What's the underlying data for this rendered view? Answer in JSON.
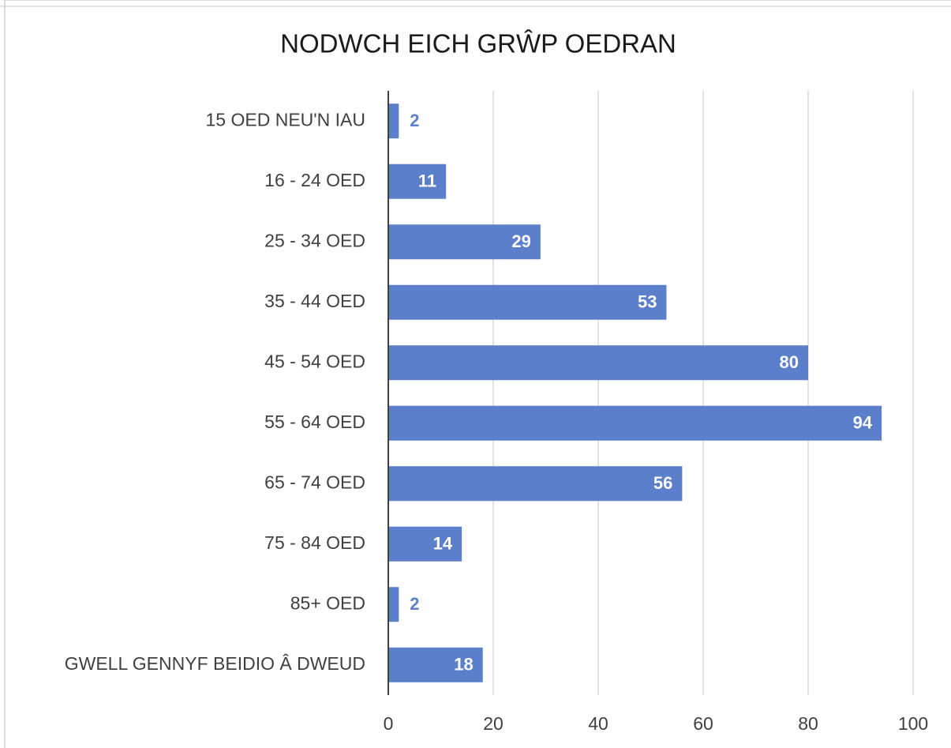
{
  "chart_data": {
    "type": "bar",
    "orientation": "horizontal",
    "title": "NODWCH EICH GRŴP OEDRAN",
    "categories": [
      "15 OED NEU'N IAU",
      "16 - 24 OED",
      "25 - 34 OED",
      "35 - 44 OED",
      "45 - 54 OED",
      "55 - 64 OED",
      "65 - 74 OED",
      "75 - 84 OED",
      "85+ OED",
      "GWELL GENNYF BEIDIO Â DWEUD"
    ],
    "values": [
      2,
      11,
      29,
      53,
      80,
      94,
      56,
      14,
      2,
      18
    ],
    "color": "#5b7fcb",
    "xlim": [
      0,
      100
    ],
    "xticks": [
      0,
      20,
      40,
      60,
      80,
      100
    ],
    "grid": true
  }
}
